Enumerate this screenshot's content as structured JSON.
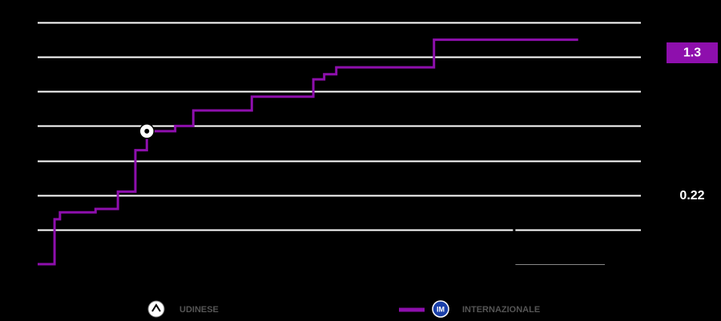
{
  "chart_data": {
    "type": "step",
    "xlim": [
      0,
      100
    ],
    "ylim": [
      0,
      1.4
    ],
    "yticks": [
      0.2,
      0.4,
      0.6,
      0.8,
      1.0,
      1.2,
      1.4
    ],
    "grid": true,
    "series": [
      {
        "name": "UDINESE",
        "color": "#000000",
        "x": [
          0,
          79
        ],
        "values": [
          0,
          0.22
        ],
        "end_x": 89.6,
        "final_label": "0.22"
      },
      {
        "name": "INTERNAZIONALE",
        "color": "#8e0fad",
        "x": [
          0,
          2.8,
          3.7,
          9.6,
          13.3,
          16.2,
          18.1,
          22.8,
          25.8,
          35.5,
          45.7,
          47.5,
          49.5,
          65.7
        ],
        "values": [
          0,
          0.26,
          0.3,
          0.32,
          0.42,
          0.66,
          0.77,
          0.8,
          0.89,
          0.97,
          1.07,
          1.1,
          1.14,
          1.3
        ],
        "end_x": 89.6,
        "final_label": "1.3",
        "goals": [
          18.1
        ]
      }
    ]
  }
}
